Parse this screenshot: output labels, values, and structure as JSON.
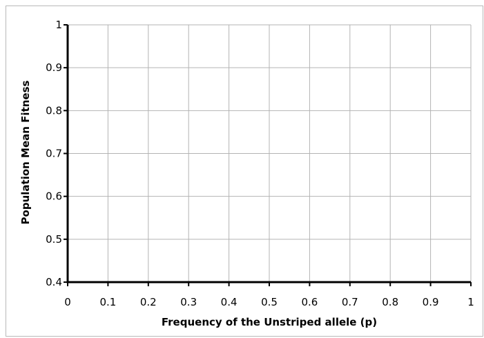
{
  "chart_data": {
    "type": "line",
    "title": "",
    "xlabel": "Frequency of the Unstriped allele (p)",
    "ylabel": "Population Mean Fitness",
    "xlim": [
      0,
      1
    ],
    "ylim": [
      0.4,
      1
    ],
    "x_ticks": [
      "0",
      "0.1",
      "0.2",
      "0.3",
      "0.4",
      "0.5",
      "0.6",
      "0.7",
      "0.8",
      "0.9",
      "1"
    ],
    "y_ticks": [
      "0.4",
      "0.5",
      "0.6",
      "0.7",
      "0.8",
      "0.9",
      "1"
    ],
    "grid": true,
    "series": [],
    "colors": {
      "grid": "#b3b3b3",
      "axis": "#000000"
    }
  }
}
